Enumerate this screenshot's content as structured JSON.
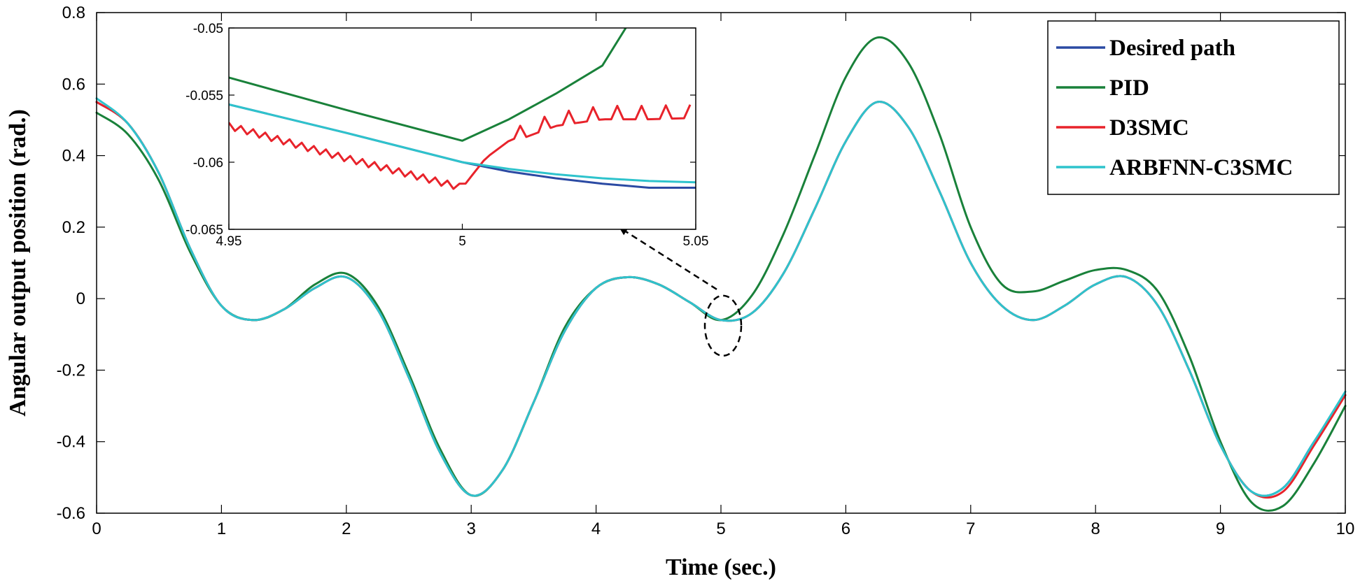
{
  "chart_data": [
    {
      "type": "line",
      "title": "",
      "xlabel": "Time (sec.)",
      "ylabel": "Angular output position (rad.)",
      "xlim": [
        0,
        10
      ],
      "ylim": [
        -0.6,
        0.8
      ],
      "xticks": [
        0,
        1,
        2,
        3,
        4,
        5,
        6,
        7,
        8,
        9,
        10
      ],
      "xtick_labels": [
        "0",
        "1",
        "2",
        "3",
        "4",
        "5",
        "6",
        "7",
        "8",
        "9",
        "10"
      ],
      "yticks": [
        -0.6,
        -0.4,
        -0.2,
        0,
        0.2,
        0.4,
        0.6,
        0.8
      ],
      "ytick_labels": [
        "-0.6",
        "-0.4",
        "-0.2",
        "0",
        "0.2",
        "0.4",
        "0.6",
        "0.8"
      ],
      "grid": false,
      "legend_position": "top-right",
      "x": [
        0,
        0.25,
        0.5,
        0.75,
        1.0,
        1.25,
        1.5,
        1.75,
        2.0,
        2.25,
        2.5,
        2.75,
        3.0,
        3.25,
        3.5,
        3.75,
        4.0,
        4.25,
        4.5,
        4.75,
        5.0,
        5.25,
        5.5,
        5.75,
        6.0,
        6.25,
        6.5,
        6.75,
        7.0,
        7.25,
        7.5,
        7.75,
        8.0,
        8.25,
        8.5,
        8.75,
        9.0,
        9.25,
        9.5,
        9.75,
        10.0
      ],
      "series": [
        {
          "name": "Desired path",
          "color": "#2b4aa3",
          "values": [
            0.55,
            0.49,
            0.35,
            0.14,
            -0.02,
            -0.06,
            -0.03,
            0.03,
            0.06,
            -0.03,
            -0.22,
            -0.43,
            -0.55,
            -0.48,
            -0.29,
            -0.09,
            0.03,
            0.06,
            0.04,
            -0.01,
            -0.06,
            -0.04,
            0.07,
            0.25,
            0.44,
            0.55,
            0.48,
            0.3,
            0.1,
            -0.02,
            -0.06,
            -0.02,
            0.04,
            0.06,
            -0.02,
            -0.2,
            -0.41,
            -0.54,
            -0.53,
            -0.4,
            -0.27
          ]
        },
        {
          "name": "PID",
          "color": "#19813a",
          "values": [
            0.52,
            0.46,
            0.33,
            0.13,
            -0.02,
            -0.06,
            -0.03,
            0.04,
            0.07,
            -0.02,
            -0.21,
            -0.42,
            -0.55,
            -0.48,
            -0.29,
            -0.08,
            0.03,
            0.06,
            0.04,
            -0.01,
            -0.06,
            0.01,
            0.18,
            0.4,
            0.62,
            0.73,
            0.66,
            0.46,
            0.2,
            0.04,
            0.02,
            0.05,
            0.08,
            0.08,
            0.02,
            -0.16,
            -0.4,
            -0.57,
            -0.58,
            -0.46,
            -0.3
          ]
        },
        {
          "name": "D3SMC",
          "color": "#e8232b",
          "values": [
            0.55,
            0.49,
            0.35,
            0.14,
            -0.02,
            -0.06,
            -0.03,
            0.03,
            0.06,
            -0.03,
            -0.22,
            -0.43,
            -0.55,
            -0.48,
            -0.29,
            -0.09,
            0.03,
            0.06,
            0.04,
            -0.01,
            -0.06,
            -0.04,
            0.07,
            0.25,
            0.44,
            0.55,
            0.48,
            0.3,
            0.1,
            -0.02,
            -0.06,
            -0.02,
            0.04,
            0.06,
            -0.02,
            -0.2,
            -0.41,
            -0.54,
            -0.54,
            -0.41,
            -0.27
          ]
        },
        {
          "name": "ARBFNN-C3SMC",
          "color": "#2ec3cc",
          "values": [
            0.56,
            0.49,
            0.35,
            0.14,
            -0.02,
            -0.06,
            -0.03,
            0.03,
            0.06,
            -0.03,
            -0.22,
            -0.43,
            -0.55,
            -0.48,
            -0.29,
            -0.09,
            0.03,
            0.06,
            0.04,
            -0.01,
            -0.06,
            -0.04,
            0.07,
            0.25,
            0.44,
            0.55,
            0.48,
            0.3,
            0.1,
            -0.02,
            -0.06,
            -0.02,
            0.04,
            0.06,
            -0.02,
            -0.2,
            -0.41,
            -0.54,
            -0.53,
            -0.4,
            -0.26
          ]
        }
      ],
      "annotations": [
        "dashed ellipse around t = 5 with dashed arrow pointing to zoomed inset"
      ]
    },
    {
      "type": "line",
      "title": "",
      "role": "zoomed inset",
      "xlim": [
        4.95,
        5.05
      ],
      "ylim": [
        -0.065,
        -0.05
      ],
      "xticks": [
        4.95,
        5,
        5.05
      ],
      "xtick_labels": [
        "4.95",
        "5",
        "5.05"
      ],
      "yticks": [
        -0.065,
        -0.06,
        -0.055,
        -0.05
      ],
      "ytick_labels": [
        "-0.065",
        "-0.06",
        "-0.055",
        "-0.05"
      ],
      "series": [
        {
          "name": "Desired path",
          "color": "#2b4aa3",
          "x": [
            4.95,
            4.975,
            5.0,
            5.01,
            5.02,
            5.03,
            5.04,
            5.05
          ],
          "values": [
            -0.0557,
            -0.0578,
            -0.06,
            -0.0607,
            -0.0612,
            -0.0616,
            -0.0619,
            -0.0619
          ]
        },
        {
          "name": "PID",
          "color": "#19813a",
          "x": [
            4.95,
            4.975,
            5.0,
            5.01,
            5.02,
            5.03,
            5.035
          ],
          "values": [
            -0.0537,
            -0.0561,
            -0.0584,
            -0.0568,
            -0.0549,
            -0.0528,
            -0.05
          ]
        },
        {
          "name": "D3SMC",
          "color": "#e8232b",
          "x": [
            4.95,
            4.975,
            5.0,
            5.005,
            5.01,
            5.02,
            5.03,
            5.04,
            5.05
          ],
          "values": [
            -0.0573,
            -0.0597,
            -0.0619,
            -0.0597,
            -0.0584,
            -0.0571,
            -0.0566,
            -0.0566,
            -0.0565
          ]
        },
        {
          "name": "ARBFNN-C3SMC",
          "color": "#2ec3cc",
          "x": [
            4.95,
            4.975,
            5.0,
            5.01,
            5.02,
            5.03,
            5.04,
            5.05
          ],
          "values": [
            -0.0557,
            -0.0578,
            -0.06,
            -0.0605,
            -0.0609,
            -0.0612,
            -0.0614,
            -0.0615
          ]
        }
      ]
    }
  ]
}
